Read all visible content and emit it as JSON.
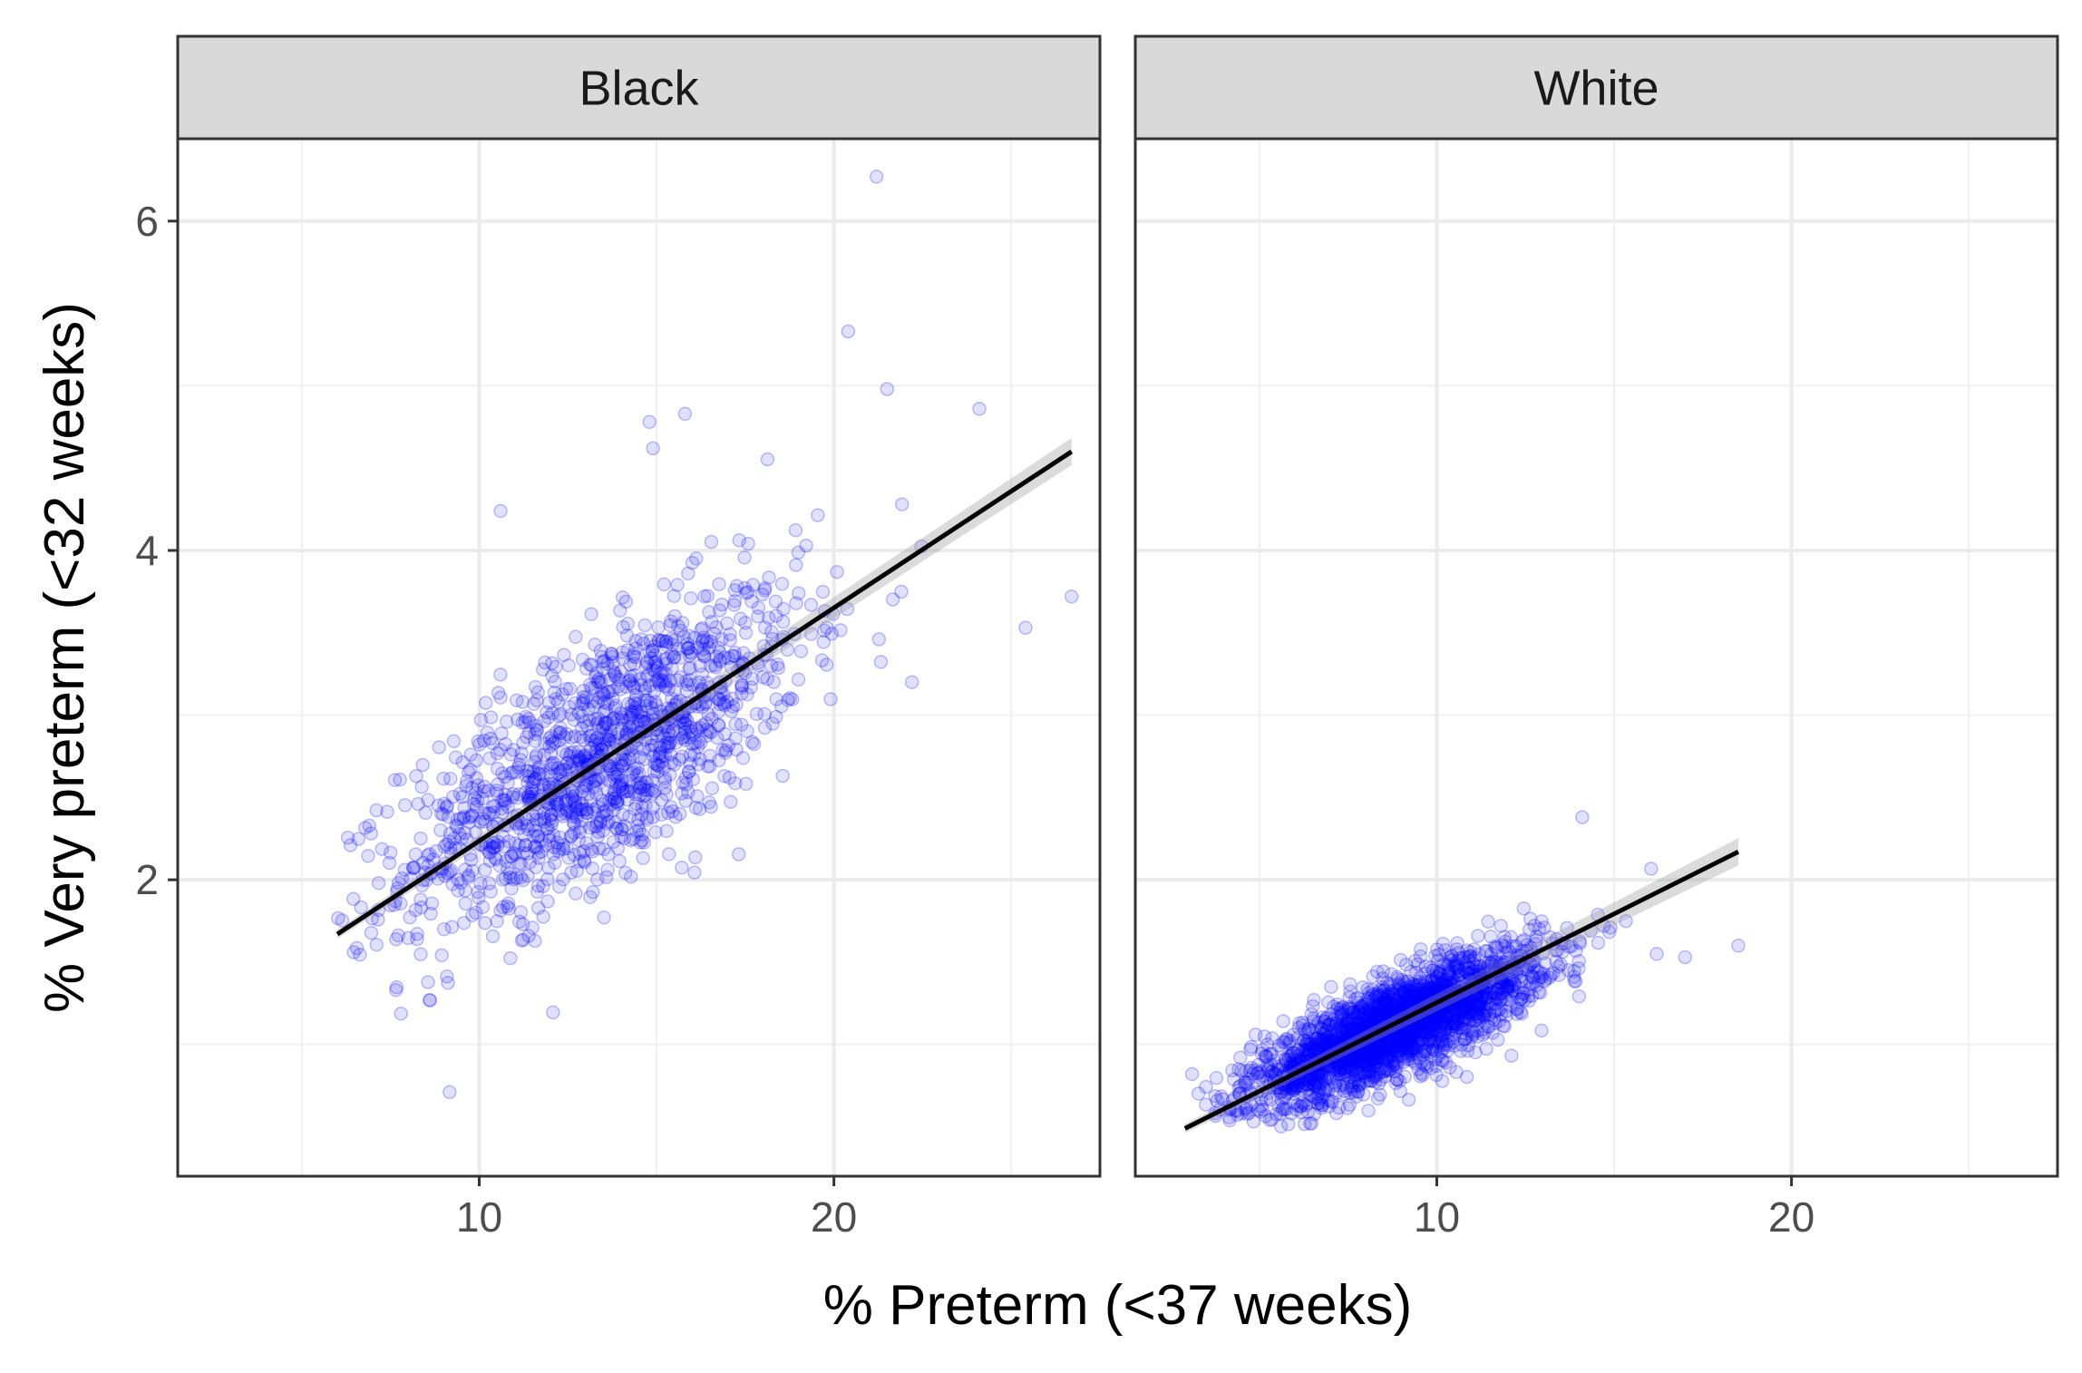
{
  "chart_data": {
    "type": "scatter",
    "xlabel": "% Preterm (<37 weeks)",
    "ylabel": "% Very preterm (<32 weeks)",
    "xlim": [
      1.5,
      27.5
    ],
    "ylim": [
      0.2,
      6.5
    ],
    "x_ticks": [
      10,
      20
    ],
    "y_ticks": [
      2,
      4,
      6
    ],
    "grid": true,
    "point_color": "#0000ff",
    "point_alpha": 0.12,
    "fit_line_color": "#000000",
    "ci_band_color": "#999999",
    "facets": [
      {
        "name": "Black",
        "n_points": 1400,
        "x_center": 13.5,
        "x_sd": 2.8,
        "y_center": 2.75,
        "y_sd": 0.5,
        "correlation": 0.7,
        "x_range": [
          6,
          27
        ],
        "fit": {
          "x_start": 6,
          "y_start": 1.67,
          "x_end": 26.7,
          "y_end": 4.6
        },
        "outliers": [
          [
            21.2,
            6.27
          ],
          [
            20.4,
            5.33
          ],
          [
            21.5,
            4.98
          ],
          [
            24.1,
            4.86
          ],
          [
            26.7,
            3.72
          ],
          [
            25.4,
            3.53
          ],
          [
            22.2,
            3.2
          ],
          [
            14.9,
            4.62
          ],
          [
            15.8,
            4.83
          ],
          [
            14.8,
            4.78
          ],
          [
            8.6,
            1.27
          ],
          [
            10.6,
            4.24
          ]
        ]
      },
      {
        "name": "White",
        "n_points": 2600,
        "x_center": 8.8,
        "x_sd": 2.0,
        "y_center": 1.1,
        "y_sd": 0.23,
        "correlation": 0.8,
        "x_range": [
          3,
          19
        ],
        "fit": {
          "x_start": 2.9,
          "y_start": 0.49,
          "x_end": 18.5,
          "y_end": 2.17
        },
        "outliers": [
          [
            18.5,
            1.6
          ],
          [
            17.0,
            1.53
          ],
          [
            14.1,
            2.38
          ],
          [
            16.2,
            1.55
          ],
          [
            3.1,
            0.82
          ]
        ]
      }
    ]
  }
}
